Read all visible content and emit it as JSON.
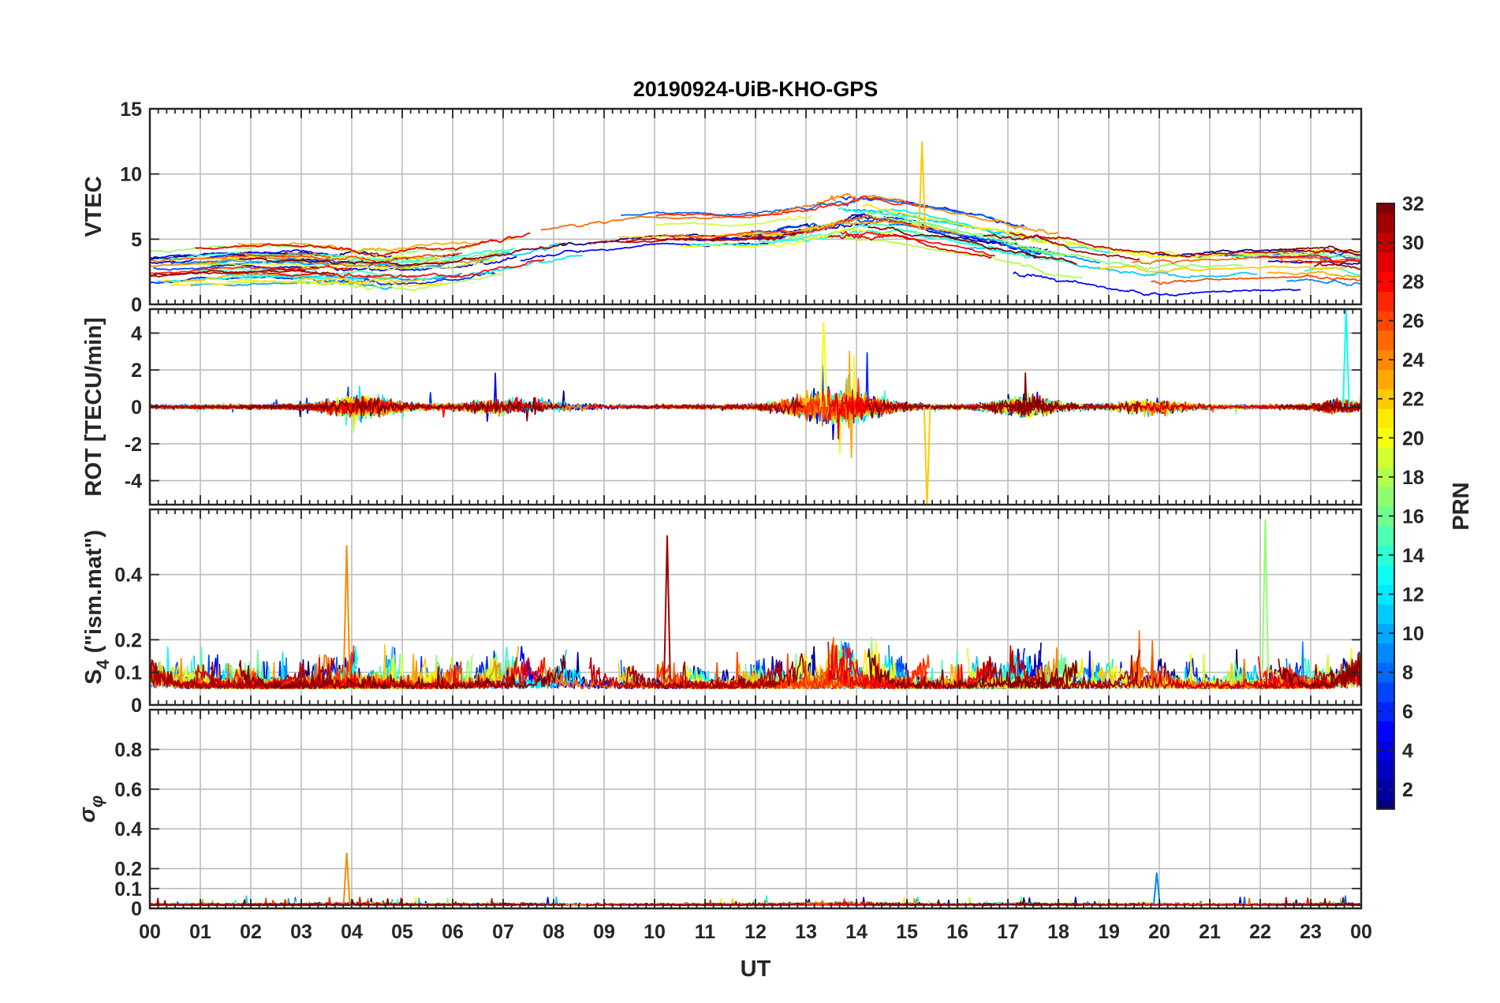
{
  "title": "20190924-UiB-KHO-GPS",
  "chart_data": [
    {
      "type": "line",
      "ylabel": "VTEC",
      "xlim": [
        0,
        24
      ],
      "ylim": [
        0,
        15
      ],
      "yticks": [
        0,
        5,
        10,
        15
      ],
      "grid": true,
      "approximate_extremes": [
        {
          "x": 15.3,
          "y": 12.5,
          "prn": 22
        }
      ]
    },
    {
      "type": "line",
      "ylabel": "ROT [TECU/min]",
      "xlim": [
        0,
        24
      ],
      "ylim": [
        -5.3,
        5.3
      ],
      "yticks": [
        -4,
        -2,
        0,
        2,
        4
      ],
      "grid": true,
      "approximate_extremes": [
        {
          "x": 15.4,
          "y": -5.3,
          "prn": 22
        },
        {
          "x": 23.7,
          "y": 5.3,
          "prn": 13
        },
        {
          "x": 13.35,
          "y": 4.6,
          "prn": 20
        }
      ]
    },
    {
      "type": "line",
      "ylabel": "S4 (\"ism.mat\")",
      "ylabel_main": "S",
      "ylabel_sub": "4",
      "ylabel_rest": " (\"ism.mat\")",
      "xlim": [
        0,
        24
      ],
      "ylim": [
        0,
        0.6
      ],
      "yticks": [
        0,
        0.1,
        0.2,
        0.4
      ],
      "grid": true,
      "approximate_extremes": [
        {
          "x": 10.25,
          "y": 0.52,
          "prn": 31
        },
        {
          "x": 22.1,
          "y": 0.57,
          "prn": 17
        },
        {
          "x": 3.9,
          "y": 0.49,
          "prn": 24
        }
      ]
    },
    {
      "type": "line",
      "ylabel": "σφ",
      "ylabel_sigma": "σ",
      "ylabel_phi": "φ",
      "xlim": [
        0,
        24
      ],
      "ylim": [
        0,
        1
      ],
      "yticks": [
        0,
        0.1,
        0.2,
        0.4,
        0.6,
        0.8
      ],
      "grid": true,
      "approximate_extremes": [
        {
          "x": 3.9,
          "y": 0.28,
          "prn": 24
        },
        {
          "x": 19.95,
          "y": 0.18,
          "prn": 9
        }
      ]
    }
  ],
  "xaxis": {
    "label": "UT",
    "ticks": [
      "00",
      "01",
      "02",
      "03",
      "04",
      "05",
      "06",
      "07",
      "08",
      "09",
      "10",
      "11",
      "12",
      "13",
      "14",
      "15",
      "16",
      "17",
      "18",
      "19",
      "20",
      "21",
      "22",
      "23",
      "00"
    ]
  },
  "colorbar": {
    "label": "PRN",
    "colormap": "jet",
    "range": [
      1,
      32
    ],
    "ticks": [
      2,
      4,
      6,
      8,
      10,
      12,
      14,
      16,
      18,
      20,
      22,
      24,
      26,
      28,
      30,
      32
    ]
  }
}
